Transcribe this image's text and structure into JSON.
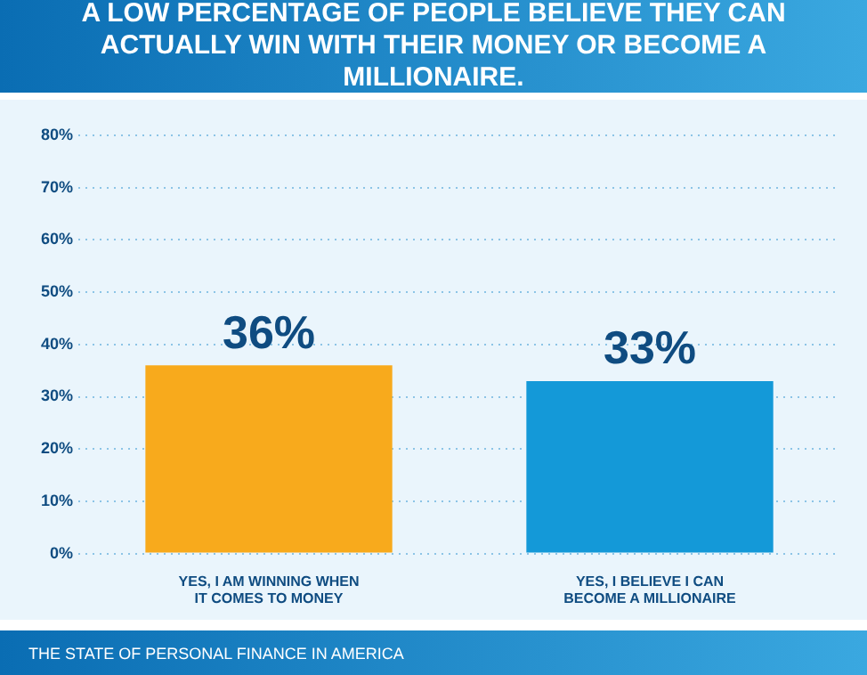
{
  "chart_data": {
    "type": "bar",
    "title": "A LOW PERCENTAGE OF PEOPLE BELIEVE THEY CAN ACTUALLY WIN WITH THEIR MONEY OR BECOME A MILLIONAIRE.",
    "categories": [
      "YES, I AM WINNING WHEN IT COMES TO MONEY",
      "YES, I BELIEVE I CAN BECOME A MILLIONAIRE"
    ],
    "values": [
      36,
      33
    ],
    "colors": [
      "#f8aa1c",
      "#1499d8"
    ],
    "value_labels": [
      "36%",
      "33%"
    ],
    "ylim": [
      0,
      80
    ],
    "yticks": [
      {
        "value": 0,
        "label": "0%"
      },
      {
        "value": 10,
        "label": "10%"
      },
      {
        "value": 20,
        "label": "20%"
      },
      {
        "value": 30,
        "label": "30%"
      },
      {
        "value": 40,
        "label": "40%"
      },
      {
        "value": 50,
        "label": "50%"
      },
      {
        "value": 60,
        "label": "60%"
      },
      {
        "value": 70,
        "label": "70%"
      },
      {
        "value": 80,
        "label": "80%"
      }
    ],
    "grid": "y",
    "annotations": [
      "THE STATE OF PERSONAL FINANCE IN AMERICA"
    ]
  }
}
